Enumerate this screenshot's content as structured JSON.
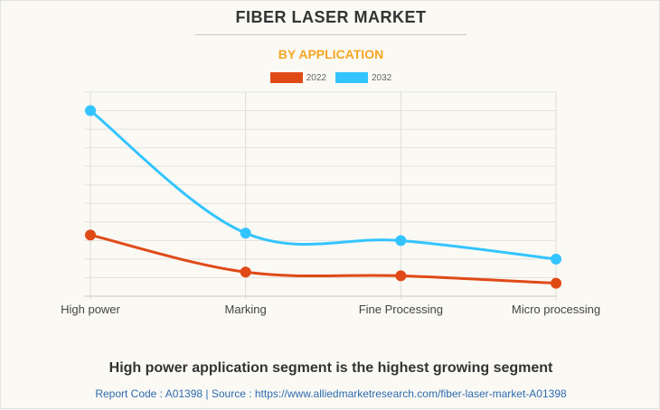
{
  "chart_data": {
    "type": "line",
    "title": "FIBER LASER MARKET",
    "subtitle": "BY APPLICATION",
    "categories": [
      "High power",
      "Marking",
      "Fine Processing",
      "Micro processing"
    ],
    "series": [
      {
        "name": "2022",
        "color": "#e04a17",
        "values": [
          3.3,
          1.3,
          1.1,
          0.7
        ]
      },
      {
        "name": "2032",
        "color": "#33c4ff",
        "values": [
          10.0,
          3.4,
          3.0,
          2.0
        ]
      }
    ],
    "xlabel": "",
    "ylabel": "",
    "ylim": [
      0,
      11
    ],
    "y_ticks_labeled": false,
    "grid": true,
    "legend_position": "top-center",
    "smooth": true
  },
  "caption": "High power application segment is the highest growing segment",
  "footer": "Report Code : A01398  |  Source : https://www.alliedmarketresearch.com/fiber-laser-market-A01398"
}
